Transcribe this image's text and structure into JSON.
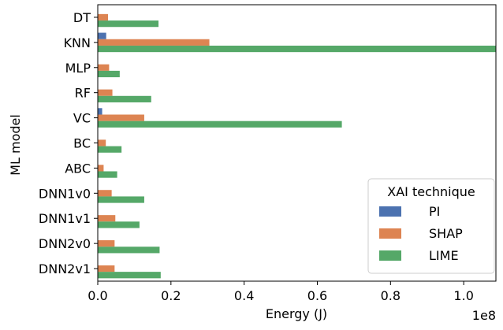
{
  "chart_data": {
    "type": "bar",
    "orientation": "horizontal",
    "categories": [
      "DT",
      "KNN",
      "MLP",
      "RF",
      "VC",
      "BC",
      "ABC",
      "DNN1v0",
      "DNN1v1",
      "DNN2v0",
      "DNN2v1"
    ],
    "series": [
      {
        "name": "PI",
        "color": "#4c72b0",
        "values": [
          0.0,
          2300000,
          0.0,
          0.0,
          1200000,
          0.0,
          0.0,
          0.0,
          0.0,
          0.0,
          0.0
        ]
      },
      {
        "name": "SHAP",
        "color": "#dd8452",
        "values": [
          2800000,
          30500000,
          3100000,
          4000000,
          12700000,
          2200000,
          1600000,
          3800000,
          4800000,
          4600000,
          4600000
        ]
      },
      {
        "name": "LIME",
        "color": "#55a868",
        "values": [
          16600000,
          108800000,
          6000000,
          14600000,
          66700000,
          6500000,
          5300000,
          12700000,
          11400000,
          16900000,
          17200000
        ]
      }
    ],
    "xlabel": "Energy (J)",
    "ylabel": "ML model",
    "xlim": [
      0,
      108800000
    ],
    "x_ticks": [
      0,
      20000000,
      40000000,
      60000000,
      80000000,
      100000000
    ],
    "x_tick_labels": [
      "0.0",
      "0.2",
      "0.4",
      "0.6",
      "0.8",
      "1.0"
    ],
    "x_offset_label": "1e8",
    "grid": false,
    "legend": {
      "title": "XAI technique",
      "position": "lower-right",
      "entries": [
        "PI",
        "SHAP",
        "LIME"
      ]
    }
  }
}
